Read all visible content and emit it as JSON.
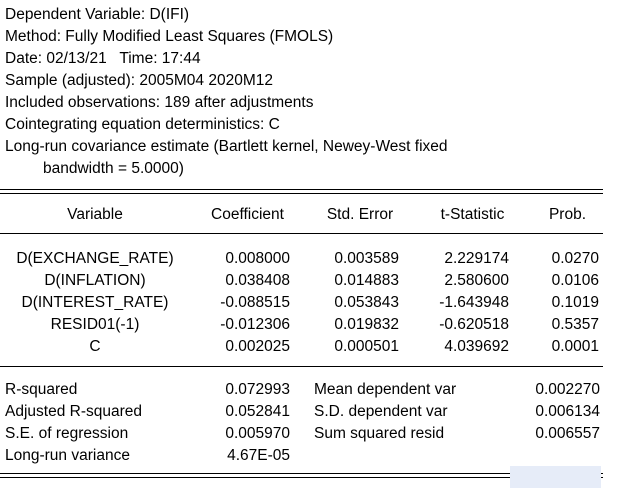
{
  "header": {
    "dependent": "Dependent Variable: D(IFI)",
    "method": "Method: Fully Modified Least Squares (FMOLS)",
    "date": "Date: 02/13/21   Time: 17:44",
    "sample": "Sample (adjusted): 2005M04 2020M12",
    "observations": "Included observations: 189 after adjustments",
    "deterministics": "Cointegrating equation deterministics: C",
    "covariance": "Long-run covariance estimate (Bartlett kernel, Newey-West fixed",
    "bandwidth": "bandwidth = 5.0000)"
  },
  "table": {
    "columns": [
      "Variable",
      "Coefficient",
      "Std. Error",
      "t-Statistic",
      "Prob."
    ],
    "rows": [
      [
        "D(EXCHANGE_RATE)",
        "0.008000",
        "0.003589",
        "2.229174",
        "0.0270"
      ],
      [
        "D(INFLATION)",
        "0.038408",
        "0.014883",
        "2.580600",
        "0.0106"
      ],
      [
        "D(INTEREST_RATE)",
        "-0.088515",
        "0.053843",
        "-1.643948",
        "0.1019"
      ],
      [
        "RESID01(-1)",
        "-0.012306",
        "0.019832",
        "-0.620518",
        "0.5357"
      ],
      [
        "C",
        "0.002025",
        "0.000501",
        "4.039692",
        "0.0001"
      ]
    ]
  },
  "stats": {
    "rows": [
      [
        "R-squared",
        "0.072993",
        "Mean dependent var",
        "0.002270"
      ],
      [
        "Adjusted R-squared",
        "0.052841",
        "S.D. dependent var",
        "0.006134"
      ],
      [
        "S.E. of regression",
        "0.005970",
        "Sum squared resid",
        "0.006557"
      ],
      [
        "Long-run variance",
        "4.67E-05",
        "",
        ""
      ]
    ]
  }
}
